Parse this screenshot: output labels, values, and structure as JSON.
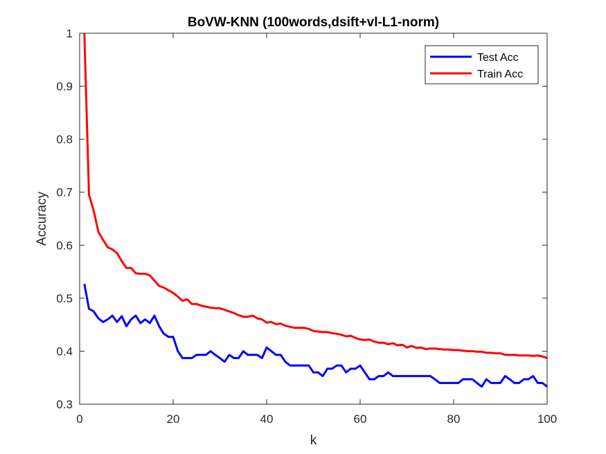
{
  "chart_data": {
    "type": "line",
    "title": "BoVW-KNN (100words,dsift+vl-L1-norm)",
    "xlabel": "k",
    "ylabel": "Accuracy",
    "xlim": [
      0,
      100
    ],
    "ylim": [
      0.3,
      1
    ],
    "xticks": [
      "0",
      "20",
      "40",
      "60",
      "80",
      "100"
    ],
    "yticks": [
      "0.3",
      "0.4",
      "0.5",
      "0.6",
      "0.7",
      "0.8",
      "0.9",
      "1"
    ],
    "grid": false,
    "legend_position": "top-right",
    "x": [
      1,
      2,
      3,
      4,
      5,
      6,
      7,
      8,
      9,
      10,
      11,
      12,
      13,
      14,
      15,
      16,
      17,
      18,
      19,
      20,
      21,
      22,
      23,
      24,
      25,
      26,
      27,
      28,
      29,
      30,
      31,
      32,
      33,
      34,
      35,
      36,
      37,
      38,
      39,
      40,
      41,
      42,
      43,
      44,
      45,
      46,
      47,
      48,
      49,
      50,
      51,
      52,
      53,
      54,
      55,
      56,
      57,
      58,
      59,
      60,
      61,
      62,
      63,
      64,
      65,
      66,
      67,
      68,
      69,
      70,
      71,
      72,
      73,
      74,
      75,
      76,
      77,
      78,
      79,
      80,
      81,
      82,
      83,
      84,
      85,
      86,
      87,
      88,
      89,
      90,
      91,
      92,
      93,
      94,
      95,
      96,
      97,
      98,
      99,
      100
    ],
    "series": [
      {
        "name": "Test Acc",
        "color": "#0000ff",
        "values": [
          0.527,
          0.48,
          0.475,
          0.462,
          0.455,
          0.46,
          0.467,
          0.455,
          0.466,
          0.447,
          0.46,
          0.467,
          0.453,
          0.46,
          0.453,
          0.467,
          0.447,
          0.433,
          0.427,
          0.427,
          0.4,
          0.387,
          0.387,
          0.387,
          0.393,
          0.393,
          0.393,
          0.4,
          0.393,
          0.387,
          0.38,
          0.393,
          0.387,
          0.387,
          0.4,
          0.393,
          0.393,
          0.393,
          0.387,
          0.407,
          0.4,
          0.393,
          0.393,
          0.38,
          0.373,
          0.373,
          0.373,
          0.373,
          0.373,
          0.36,
          0.36,
          0.353,
          0.367,
          0.367,
          0.373,
          0.373,
          0.36,
          0.367,
          0.367,
          0.373,
          0.36,
          0.347,
          0.347,
          0.353,
          0.353,
          0.36,
          0.353,
          0.353,
          0.353,
          0.353,
          0.353,
          0.353,
          0.353,
          0.353,
          0.353,
          0.347,
          0.34,
          0.34,
          0.34,
          0.34,
          0.34,
          0.347,
          0.347,
          0.347,
          0.34,
          0.333,
          0.347,
          0.34,
          0.34,
          0.34,
          0.353,
          0.347,
          0.34,
          0.34,
          0.347,
          0.347,
          0.353,
          0.34,
          0.34,
          0.333
        ]
      },
      {
        "name": "Train Acc",
        "color": "#ff0000",
        "values": [
          1.0,
          0.695,
          0.665,
          0.625,
          0.61,
          0.596,
          0.592,
          0.585,
          0.57,
          0.557,
          0.557,
          0.547,
          0.546,
          0.546,
          0.543,
          0.533,
          0.523,
          0.52,
          0.515,
          0.51,
          0.503,
          0.495,
          0.498,
          0.489,
          0.489,
          0.486,
          0.484,
          0.482,
          0.481,
          0.481,
          0.478,
          0.475,
          0.472,
          0.468,
          0.465,
          0.465,
          0.467,
          0.462,
          0.46,
          0.454,
          0.455,
          0.451,
          0.452,
          0.448,
          0.446,
          0.444,
          0.444,
          0.444,
          0.442,
          0.438,
          0.437,
          0.436,
          0.436,
          0.434,
          0.433,
          0.431,
          0.428,
          0.429,
          0.425,
          0.422,
          0.421,
          0.422,
          0.418,
          0.416,
          0.416,
          0.413,
          0.415,
          0.411,
          0.412,
          0.407,
          0.41,
          0.406,
          0.407,
          0.404,
          0.405,
          0.405,
          0.404,
          0.403,
          0.403,
          0.402,
          0.402,
          0.401,
          0.4,
          0.4,
          0.399,
          0.399,
          0.397,
          0.397,
          0.396,
          0.396,
          0.393,
          0.393,
          0.393,
          0.392,
          0.392,
          0.392,
          0.391,
          0.392,
          0.39,
          0.387
        ]
      }
    ]
  }
}
